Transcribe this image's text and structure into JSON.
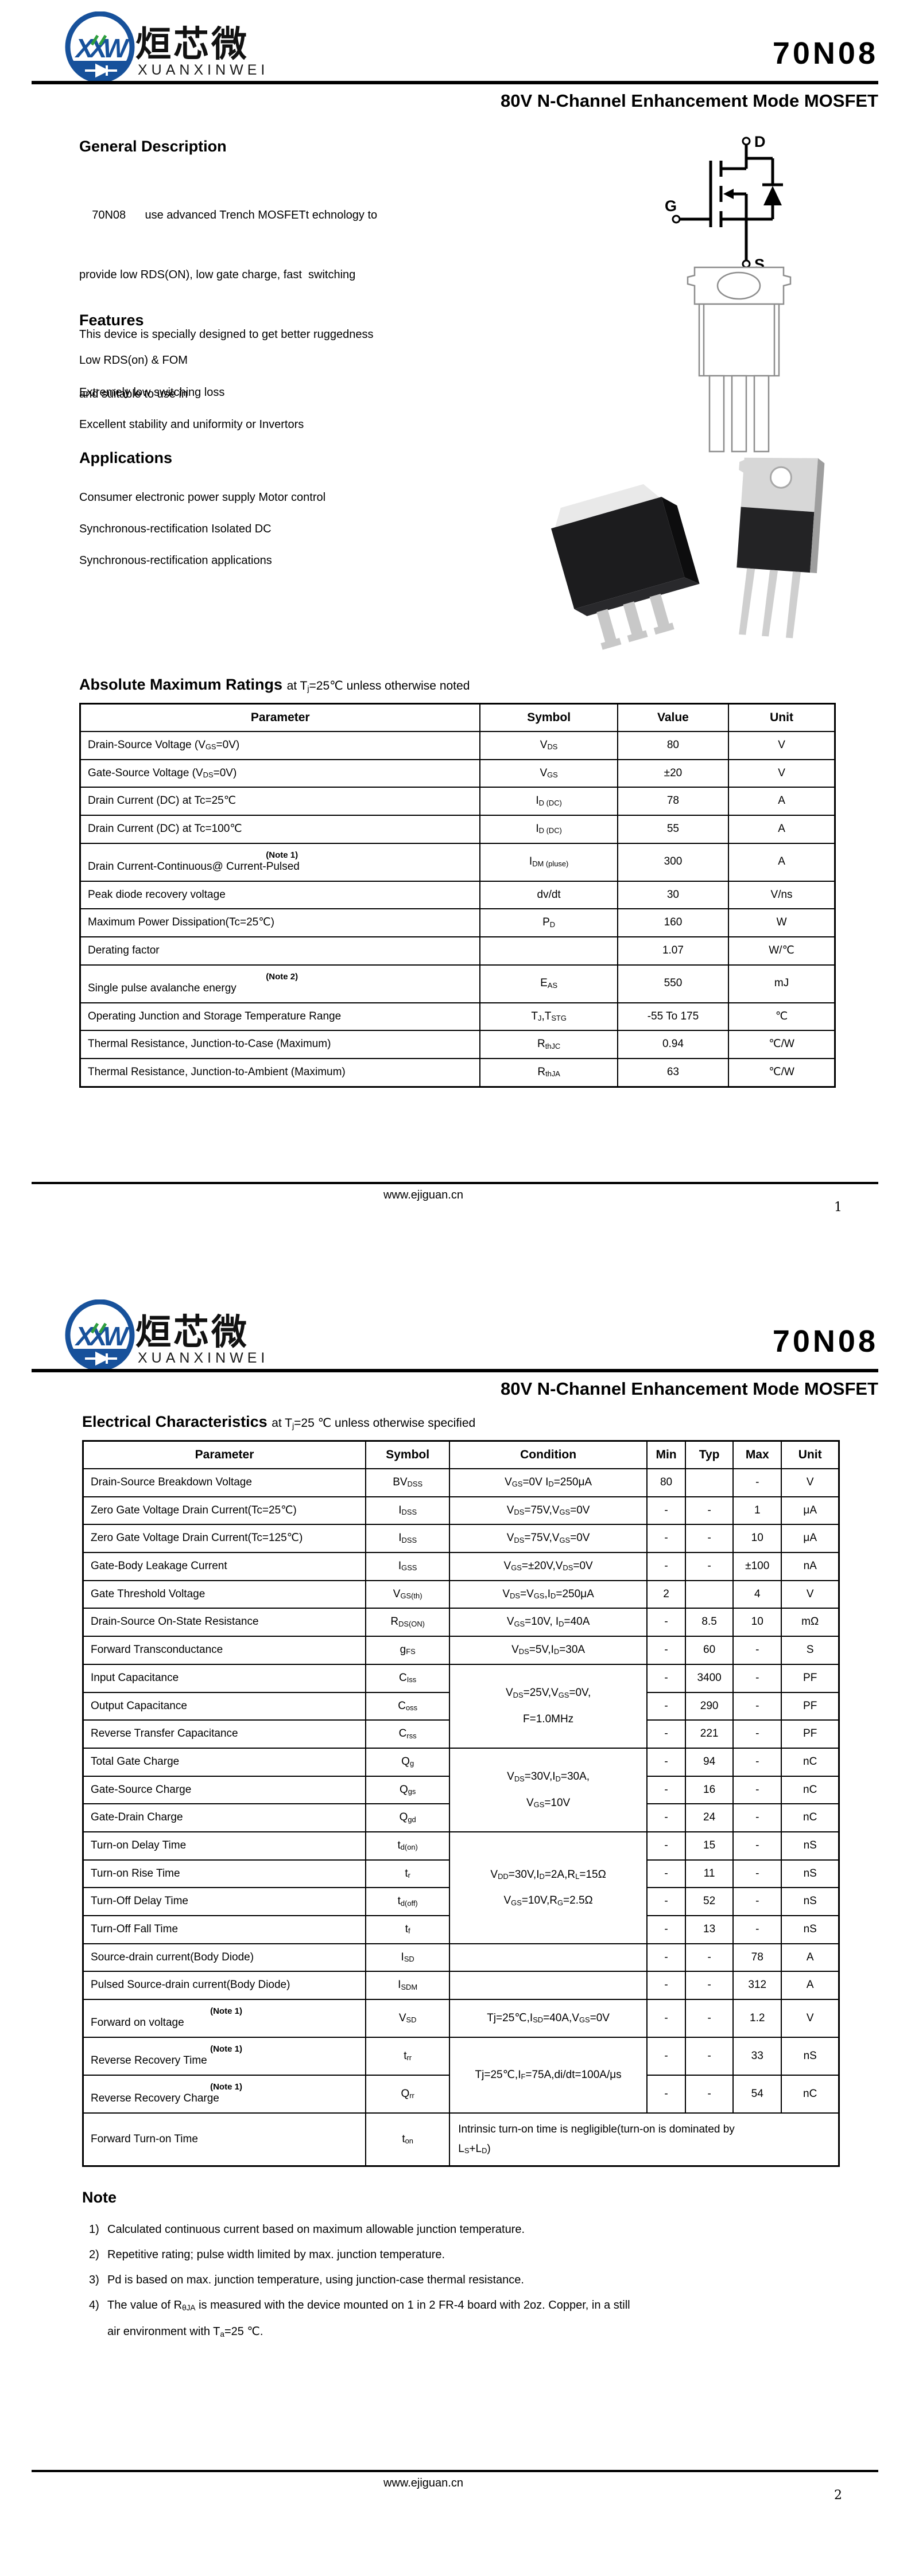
{
  "logo": {
    "monogram": "XXW",
    "company_cn": "烜芯微",
    "company_latin": "XUANXINWEI"
  },
  "doc": {
    "part_number": "70N08",
    "subtitle": "80V N-Channel Enhancement Mode MOSFET",
    "footer_url": "www.ejiguan.cn"
  },
  "page1": {
    "page_number": "1",
    "general_description": {
      "title": "General Description",
      "lines": [
        "    70N08      use advanced Trench MOSFETt echnology to",
        "provide low RDS(ON), low gate charge, fast  switching",
        "This device is specially designed to get better ruggedness",
        "and suitable to use in"
      ]
    },
    "features": {
      "title": "Features",
      "items": [
        "Low RDS(on) & FOM",
        "Extremely low switching loss",
        "Excellent stability and uniformity or Invertors"
      ]
    },
    "applications": {
      "title": "Applications",
      "items": [
        "Consumer electronic power supply Motor control",
        "Synchronous-rectification Isolated DC",
        "Synchronous-rectification applications"
      ]
    },
    "diagram": {
      "drain": "D",
      "gate": "G",
      "source": "S"
    },
    "amr": {
      "title": "Absolute Maximum Ratings",
      "subtitle_html": "at T<sub>j</sub>=25℃ unless otherwise noted",
      "table": {
        "col_widths": [
          "53%",
          "18.2%",
          "14.7%",
          "14.1%"
        ],
        "headers": [
          "Parameter",
          "Symbol",
          "Value",
          "Unit"
        ],
        "rows": [
          [
            {
              "h": "Drain-Source Voltage (V<sub>GS</sub>=0V)",
              "cls": "pl"
            },
            {
              "h": "V<sub>DS</sub>"
            },
            {
              "t": "80"
            },
            {
              "t": "V"
            }
          ],
          [
            {
              "h": "Gate-Source Voltage (V<sub>DS</sub>=0V)",
              "cls": "pl"
            },
            {
              "h": "V<sub>GS</sub>"
            },
            {
              "t": "±20"
            },
            {
              "t": "V"
            }
          ],
          [
            {
              "h": "Drain Current (DC) at Tc=25℃",
              "cls": "pl"
            },
            {
              "h": "I<sub>D (DC)</sub>"
            },
            {
              "t": "78"
            },
            {
              "t": "A"
            }
          ],
          [
            {
              "h": "Drain Current (DC) at Tc=100℃",
              "cls": "pl"
            },
            {
              "h": "I<sub>D (DC)</sub>"
            },
            {
              "t": "55"
            },
            {
              "t": "A"
            }
          ],
          [
            {
              "h": "<span class='nsup'>(Note 1)</span>Drain Current-Continuous@ Current-Pulsed",
              "cls": "pl"
            },
            {
              "h": "I<sub>DM (pluse)</sub>"
            },
            {
              "t": "300"
            },
            {
              "t": "A"
            }
          ],
          [
            {
              "h": "Peak diode recovery voltage",
              "cls": "pl"
            },
            {
              "t": "dv/dt"
            },
            {
              "t": "30"
            },
            {
              "t": "V/ns"
            }
          ],
          [
            {
              "h": "Maximum Power Dissipation(Tc=25℃)",
              "cls": "pl"
            },
            {
              "h": "P<sub>D</sub>"
            },
            {
              "t": "160"
            },
            {
              "t": "W"
            }
          ],
          [
            {
              "h": "Derating factor",
              "cls": "pl"
            },
            {
              "t": ""
            },
            {
              "t": "1.07"
            },
            {
              "t": "W/℃"
            }
          ],
          [
            {
              "h": "<span class='nsup'>(Note 2)</span>Single pulse avalanche energy",
              "cls": "pl"
            },
            {
              "h": "E<sub>AS</sub>"
            },
            {
              "t": "550"
            },
            {
              "t": "mJ"
            }
          ],
          [
            {
              "h": "Operating Junction and Storage Temperature Range",
              "cls": "pl"
            },
            {
              "h": "T<sub>J</sub>,T<sub>STG</sub>"
            },
            {
              "t": "-55 To 175"
            },
            {
              "t": "℃"
            }
          ],
          [
            {
              "h": "Thermal Resistance, Junction-to-Case (Maximum)",
              "cls": "pl"
            },
            {
              "h": "R<sub>thJC</sub>"
            },
            {
              "t": "0.94"
            },
            {
              "t": "℃/W"
            }
          ],
          [
            {
              "h": "Thermal Resistance, Junction-to-Ambient (Maximum)",
              "cls": "pl"
            },
            {
              "h": "R<sub>thJA</sub>"
            },
            {
              "t": "63"
            },
            {
              "t": "℃/W"
            }
          ]
        ]
      }
    }
  },
  "page2": {
    "page_number": "2",
    "ec": {
      "title": "Electrical Characteristics",
      "subtitle_html": "at T<sub>j</sub>=25 ℃ unless otherwise specified",
      "table": {
        "col_widths": [
          "37.4%",
          "11.1%",
          "26.1%",
          "5.1%",
          "6.3%",
          "6.4%",
          "7.6%"
        ],
        "headers": [
          "Parameter",
          "Symbol",
          "Condition",
          "Min",
          "Typ",
          "Max",
          "Unit"
        ],
        "rows": [
          [
            {
              "h": "Drain-Source Breakdown Voltage",
              "cls": "pl"
            },
            {
              "h": "BV<sub>DSS</sub>"
            },
            {
              "h": "V<sub>GS</sub>=0V I<sub>D</sub>=250μA"
            },
            {
              "t": "80"
            },
            {
              "t": ""
            },
            {
              "t": "-"
            },
            {
              "t": "V"
            }
          ],
          [
            {
              "h": "Zero Gate Voltage Drain Current(Tc=25℃)",
              "cls": "pl"
            },
            {
              "h": "I<sub>DSS</sub>"
            },
            {
              "h": "V<sub>DS</sub>=75V,V<sub>GS</sub>=0V"
            },
            {
              "t": "-"
            },
            {
              "t": "-"
            },
            {
              "t": "1"
            },
            {
              "t": "μA"
            }
          ],
          [
            {
              "h": "Zero Gate Voltage Drain Current(Tc=125℃)",
              "cls": "pl"
            },
            {
              "h": "I<sub>DSS</sub>"
            },
            {
              "h": "V<sub>DS</sub>=75V,V<sub>GS</sub>=0V"
            },
            {
              "t": "-"
            },
            {
              "t": "-"
            },
            {
              "t": "10"
            },
            {
              "t": "μA"
            }
          ],
          [
            {
              "h": "Gate-Body Leakage Current",
              "cls": "pl"
            },
            {
              "h": "I<sub>GSS</sub>"
            },
            {
              "h": "V<sub>GS</sub>=±20V,V<sub>DS</sub>=0V"
            },
            {
              "t": "-"
            },
            {
              "t": "-"
            },
            {
              "t": "±100"
            },
            {
              "t": "nA"
            }
          ],
          [
            {
              "h": "Gate Threshold Voltage",
              "cls": "pl"
            },
            {
              "h": "V<sub>GS(th)</sub>"
            },
            {
              "h": "V<sub>DS</sub>=V<sub>GS</sub>,I<sub>D</sub>=250μA"
            },
            {
              "t": "2"
            },
            {
              "t": ""
            },
            {
              "t": "4"
            },
            {
              "t": "V"
            }
          ],
          [
            {
              "h": "Drain-Source On-State Resistance",
              "cls": "pl"
            },
            {
              "h": "R<sub>DS(ON)</sub>"
            },
            {
              "h": "V<sub>GS</sub>=10V, I<sub>D</sub>=40A"
            },
            {
              "t": "-"
            },
            {
              "t": "8.5"
            },
            {
              "t": "10"
            },
            {
              "t": "mΩ"
            }
          ],
          [
            {
              "h": "Forward Transconductance",
              "cls": "pl"
            },
            {
              "h": "g<sub>FS</sub>"
            },
            {
              "h": "V<sub>DS</sub>=5V,I<sub>D</sub>=30A"
            },
            {
              "t": "-"
            },
            {
              "t": "60"
            },
            {
              "t": "-"
            },
            {
              "t": "S"
            }
          ],
          [
            {
              "h": "Input Capacitance",
              "cls": "pl"
            },
            {
              "h": "C<sub>Iss</sub>"
            },
            {
              "h": "V<sub>DS</sub>=25V,V<sub>GS</sub>=0V,<br>F=1.0MHz",
              "rs": 3,
              "cls": "cond"
            },
            {
              "t": "-"
            },
            {
              "t": "3400"
            },
            {
              "t": "-"
            },
            {
              "t": "PF"
            }
          ],
          [
            {
              "h": "Output Capacitance",
              "cls": "pl"
            },
            {
              "h": "C<sub>oss</sub>"
            },
            {
              "t": "-"
            },
            {
              "t": "290"
            },
            {
              "t": "-"
            },
            {
              "t": "PF"
            }
          ],
          [
            {
              "h": "Reverse Transfer Capacitance",
              "cls": "pl"
            },
            {
              "h": "C<sub>rss</sub>"
            },
            {
              "t": "-"
            },
            {
              "t": "221"
            },
            {
              "t": "-"
            },
            {
              "t": "PF"
            }
          ],
          [
            {
              "h": "Total Gate Charge",
              "cls": "pl"
            },
            {
              "h": "Q<sub>g</sub>"
            },
            {
              "h": "V<sub>DS</sub>=30V,I<sub>D</sub>=30A,<br>V<sub>GS</sub>=10V",
              "rs": 3,
              "cls": "cond"
            },
            {
              "t": "-"
            },
            {
              "t": "94"
            },
            {
              "t": "-"
            },
            {
              "t": "nC"
            }
          ],
          [
            {
              "h": "Gate-Source Charge",
              "cls": "pl"
            },
            {
              "h": "Q<sub>gs</sub>"
            },
            {
              "t": "-"
            },
            {
              "t": "16"
            },
            {
              "t": "-"
            },
            {
              "t": "nC"
            }
          ],
          [
            {
              "h": "Gate-Drain Charge",
              "cls": "pl"
            },
            {
              "h": "Q<sub>gd</sub>"
            },
            {
              "t": "-"
            },
            {
              "t": "24"
            },
            {
              "t": "-"
            },
            {
              "t": "nC"
            }
          ],
          [
            {
              "h": "Turn-on Delay Time",
              "cls": "pl"
            },
            {
              "h": "t<sub>d(on)</sub>"
            },
            {
              "h": "V<sub>DD</sub>=30V,I<sub>D</sub>=2A,R<sub>L</sub>=15Ω<br>V<sub>GS</sub>=10V,R<sub>G</sub>=2.5Ω",
              "rs": 4,
              "cls": "cond"
            },
            {
              "t": "-"
            },
            {
              "t": "15"
            },
            {
              "t": "-"
            },
            {
              "t": "nS"
            }
          ],
          [
            {
              "h": "Turn-on Rise Time",
              "cls": "pl"
            },
            {
              "h": "t<sub>r</sub>"
            },
            {
              "t": "-"
            },
            {
              "t": "11"
            },
            {
              "t": "-"
            },
            {
              "t": "nS"
            }
          ],
          [
            {
              "h": "Turn-Off Delay Time",
              "cls": "pl"
            },
            {
              "h": "t<sub>d(off)</sub>"
            },
            {
              "t": "-"
            },
            {
              "t": "52"
            },
            {
              "t": "-"
            },
            {
              "t": "nS"
            }
          ],
          [
            {
              "h": "Turn-Off Fall Time",
              "cls": "pl"
            },
            {
              "h": "t<sub>f</sub>"
            },
            {
              "t": "-"
            },
            {
              "t": "13"
            },
            {
              "t": "-"
            },
            {
              "t": "nS"
            }
          ],
          [
            {
              "h": "Source-drain current(Body Diode)",
              "cls": "pl"
            },
            {
              "h": "I<sub>SD</sub>"
            },
            {
              "t": ""
            },
            {
              "t": "-"
            },
            {
              "t": "-"
            },
            {
              "t": "78"
            },
            {
              "t": "A"
            }
          ],
          [
            {
              "h": "Pulsed Source-drain current(Body Diode)",
              "cls": "pl"
            },
            {
              "h": "I<sub>SDM</sub>"
            },
            {
              "t": ""
            },
            {
              "t": "-"
            },
            {
              "t": "-"
            },
            {
              "t": "312"
            },
            {
              "t": "A"
            }
          ],
          [
            {
              "h": "<span class='nsup'>(Note 1)</span>Forward on voltage",
              "cls": "pl"
            },
            {
              "h": "V<sub>SD</sub>"
            },
            {
              "h": "Tj=25℃,I<sub>SD</sub>=40A,V<sub>GS</sub>=0V"
            },
            {
              "t": "-"
            },
            {
              "t": "-"
            },
            {
              "t": "1.2"
            },
            {
              "t": "V"
            }
          ],
          [
            {
              "h": "<span class='nsup'>(Note 1)</span>Reverse Recovery Time",
              "cls": "pl"
            },
            {
              "h": "t<sub>rr</sub>"
            },
            {
              "h": "Tj=25℃,I<sub>F</sub>=75A,di/dt=100A/μs",
              "rs": 2,
              "cls": "cond"
            },
            {
              "t": "-"
            },
            {
              "t": "-"
            },
            {
              "t": "33"
            },
            {
              "t": "nS"
            }
          ],
          [
            {
              "h": "<span class='nsup'>(Note 1)</span>Reverse Recovery Charge",
              "cls": "pl"
            },
            {
              "h": "Q<sub>rr</sub>"
            },
            {
              "t": "-"
            },
            {
              "t": "-"
            },
            {
              "t": "54"
            },
            {
              "t": "nC"
            }
          ],
          [
            {
              "h": "Forward Turn-on Time",
              "cls": "pl"
            },
            {
              "h": "t<sub>on</sub>"
            },
            {
              "h": "Intrinsic turn-on time is negligible(turn-on is dominated by<br>L<sub>S</sub>+L<sub>D</sub>)",
              "cs": 5,
              "cls": "condl"
            }
          ]
        ]
      }
    },
    "note": {
      "title": "Note",
      "items": [
        {
          "n": "1)",
          "h": "Calculated continuous current based on maximum allowable junction temperature."
        },
        {
          "n": "2)",
          "h": "Repetitive rating; pulse width limited by max. junction temperature."
        },
        {
          "n": "3)",
          "h": "Pd is based on max. junction temperature, using junction-case thermal resistance."
        },
        {
          "n": "4)",
          "h": "The value of R<sub>θJA</sub> is measured with the device mounted on 1 in 2 FR-4 board with 2oz. Copper, in a still<br>air environment with T<sub>a</sub>=25 ℃."
        }
      ]
    }
  }
}
